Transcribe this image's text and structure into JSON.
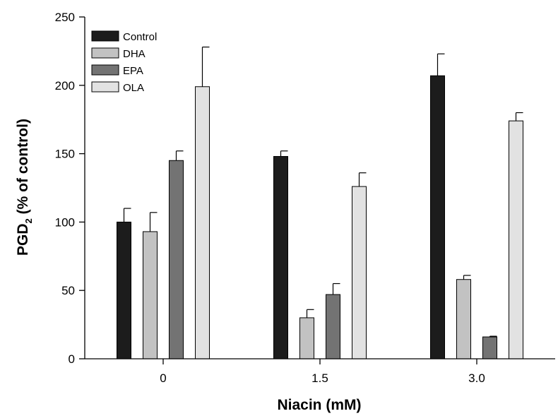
{
  "chart_data": {
    "type": "bar",
    "xlabel": "Niacin (mM)",
    "ylabel": {
      "main": "PGD",
      "sub": "2",
      "rest": " (% of control)"
    },
    "categories": [
      "0",
      "1.5",
      "3.0"
    ],
    "ylim": [
      0,
      250
    ],
    "yticks": [
      0,
      50,
      100,
      150,
      200,
      250
    ],
    "grid": false,
    "legend_position": "top-left",
    "series": [
      {
        "name": "Control",
        "color": "#1c1c1c",
        "values": [
          100,
          148,
          207
        ],
        "errors": [
          10,
          4,
          16
        ]
      },
      {
        "name": "DHA",
        "color": "#c2c2c2",
        "values": [
          93,
          30,
          58
        ],
        "errors": [
          14,
          6,
          3
        ]
      },
      {
        "name": "EPA",
        "color": "#737373",
        "values": [
          145,
          47,
          16
        ],
        "errors": [
          7,
          8,
          0.5
        ]
      },
      {
        "name": "OLA",
        "color": "#e2e2e2",
        "values": [
          199,
          126,
          174
        ],
        "errors": [
          29,
          10,
          6
        ]
      }
    ]
  }
}
